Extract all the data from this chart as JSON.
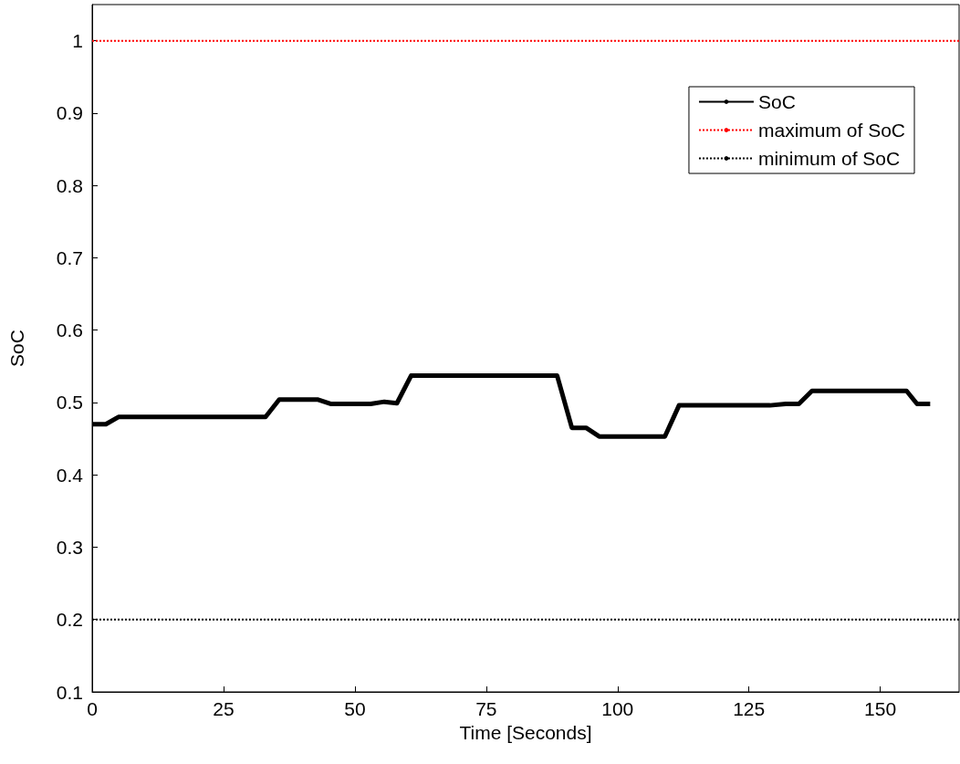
{
  "chart_data": {
    "type": "line",
    "xlabel": "Time [Seconds]",
    "ylabel": "SoC",
    "series": [
      {
        "name": "SoC",
        "color": "#000000",
        "line_style": "solid",
        "x": [
          0,
          2.6,
          5,
          33,
          35.6,
          43,
          45.5,
          53,
          55.6,
          58,
          60.7,
          88.5,
          91.3,
          94,
          96.5,
          109,
          111.7,
          129,
          132,
          134.5,
          137,
          155,
          157,
          159.5
        ],
        "values": [
          0.47,
          0.47,
          0.48,
          0.48,
          0.504,
          0.504,
          0.498,
          0.498,
          0.501,
          0.499,
          0.537,
          0.537,
          0.465,
          0.465,
          0.453,
          0.453,
          0.496,
          0.496,
          0.498,
          0.498,
          0.516,
          0.516,
          0.498,
          0.498
        ]
      },
      {
        "name": "maximum of SoC",
        "color": "#ff0000",
        "line_style": "dotted",
        "x": [
          0,
          165
        ],
        "values": [
          1,
          1
        ]
      },
      {
        "name": "minimum of SoC",
        "color": "#000000",
        "line_style": "dotted",
        "x": [
          0,
          165
        ],
        "values": [
          0.2,
          0.2
        ]
      }
    ],
    "xlim": [
      0,
      165
    ],
    "xticks": [
      0,
      25,
      50,
      75,
      100,
      125,
      150
    ],
    "ylim": [
      0.1,
      1.05
    ],
    "yticks": [
      0.1,
      0.2,
      0.3,
      0.4,
      0.5,
      0.6,
      0.7,
      0.8,
      0.9,
      1
    ],
    "grid": false,
    "legend": "top right",
    "marker": "none"
  }
}
